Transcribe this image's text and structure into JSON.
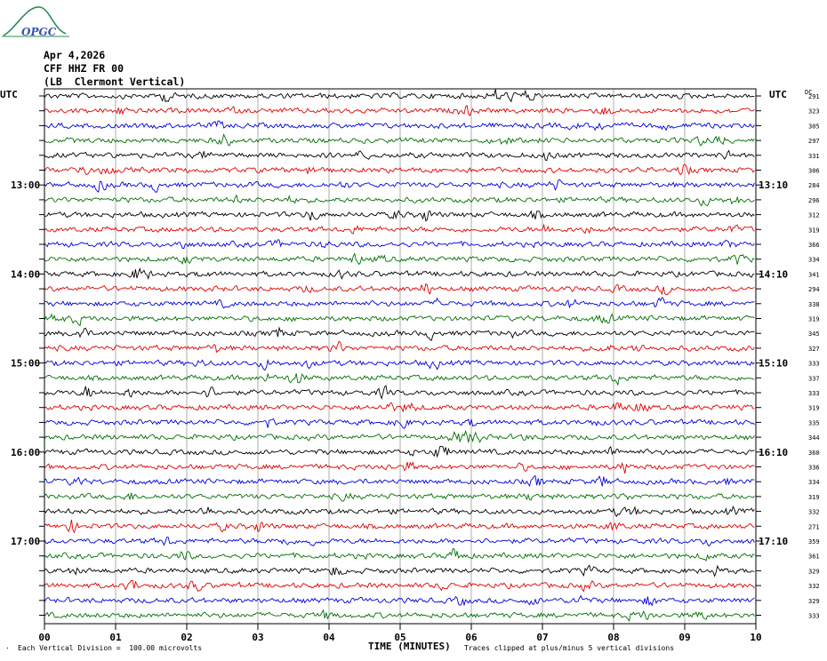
{
  "logo": {
    "text": "OPGC"
  },
  "header": {
    "date": "Apr 4,2026",
    "station": "CFF HHZ FR 00",
    "location": "(LB  Clermont Vertical)"
  },
  "axes": {
    "left_unit": "UTC",
    "right_unit": "UTC",
    "right_extra": "DC",
    "xlabel": "TIME (MINUTES)"
  },
  "footer": {
    "scale_note": "Each Vertical Division =  100.00 microvolts",
    "clip_note": "Traces clipped at plus/minus 5 vertical divisions"
  },
  "chart_data": {
    "type": "line",
    "title": "",
    "x_ticks": [
      "00",
      "01",
      "02",
      "03",
      "04",
      "05",
      "06",
      "07",
      "08",
      "09",
      "10"
    ],
    "xlim": [
      0,
      10
    ],
    "n_traces": 36,
    "trace_colors": [
      "#000000",
      "#e00000",
      "#0000e0",
      "#007000"
    ],
    "left_time_labels": [
      {
        "trace": 6,
        "label": "13:00"
      },
      {
        "trace": 12,
        "label": "14:00"
      },
      {
        "trace": 18,
        "label": "15:00"
      },
      {
        "trace": 24,
        "label": "16:00"
      },
      {
        "trace": 30,
        "label": "17:00"
      }
    ],
    "right_time_labels": [
      {
        "trace": 6,
        "label": "13:10"
      },
      {
        "trace": 12,
        "label": "14:10"
      },
      {
        "trace": 18,
        "label": "15:10"
      },
      {
        "trace": 24,
        "label": "16:10"
      },
      {
        "trace": 30,
        "label": "17:10"
      }
    ],
    "dc_offsets": [
      "291",
      "323",
      "305",
      "297",
      "331",
      "306",
      "284",
      "296",
      "312",
      "319",
      "366",
      "334",
      "341",
      "294",
      "338",
      "319",
      "345",
      "327",
      "333",
      "337",
      "333",
      "319",
      "335",
      "344",
      "360",
      "336",
      "334",
      "319",
      "332",
      "271",
      "359",
      "361",
      "329",
      "332",
      "329",
      "333"
    ]
  }
}
